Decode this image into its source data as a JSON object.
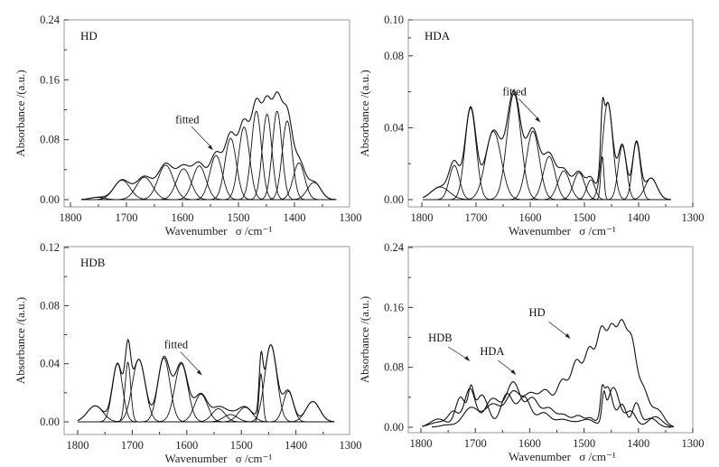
{
  "chart_data": [
    {
      "id": "HD",
      "type": "line",
      "panel_label": "HD",
      "xlabel": "Wavenumber",
      "xlabel_symbol": "σ /cm⁻¹",
      "ylabel": "Absorbance /(a.u.)",
      "xlim": [
        1820,
        1300
      ],
      "ylim": [
        -0.008,
        0.24
      ],
      "xticks": [
        1800,
        1700,
        1600,
        1500,
        1400,
        1300
      ],
      "yticks": [
        "0.00",
        "0.08",
        "0.16",
        "0.24"
      ],
      "ytick_values": [
        0.0,
        0.08,
        0.16,
        0.24
      ],
      "x_range_data": [
        1780,
        1325
      ],
      "annotation": {
        "text": "fitted",
        "target_x": 1545,
        "target_y": 0.066
      },
      "components": [
        {
          "center": 1752,
          "height": 0.003,
          "fwhm": 30
        },
        {
          "center": 1708,
          "height": 0.026,
          "fwhm": 34
        },
        {
          "center": 1668,
          "height": 0.03,
          "fwhm": 34
        },
        {
          "center": 1630,
          "height": 0.046,
          "fwhm": 32
        },
        {
          "center": 1598,
          "height": 0.041,
          "fwhm": 30
        },
        {
          "center": 1570,
          "height": 0.045,
          "fwhm": 28
        },
        {
          "center": 1540,
          "height": 0.059,
          "fwhm": 26
        },
        {
          "center": 1514,
          "height": 0.082,
          "fwhm": 24
        },
        {
          "center": 1490,
          "height": 0.097,
          "fwhm": 23
        },
        {
          "center": 1468,
          "height": 0.118,
          "fwhm": 21
        },
        {
          "center": 1449,
          "height": 0.114,
          "fwhm": 20
        },
        {
          "center": 1431,
          "height": 0.118,
          "fwhm": 20
        },
        {
          "center": 1413,
          "height": 0.105,
          "fwhm": 21
        },
        {
          "center": 1392,
          "height": 0.049,
          "fwhm": 24
        },
        {
          "center": 1365,
          "height": 0.023,
          "fwhm": 28
        }
      ]
    },
    {
      "id": "HDA",
      "type": "line",
      "panel_label": "HDA",
      "xlabel": "Wavenumber",
      "xlabel_symbol": "σ /cm⁻¹",
      "ylabel": "Absorbance /(a.u.)",
      "xlim": [
        1825,
        1300
      ],
      "ylim": [
        -0.004,
        0.1
      ],
      "xticks": [
        1800,
        1700,
        1600,
        1500,
        1400,
        1300
      ],
      "yticks": [
        "0.00",
        "0.04",
        "0.08",
        "0.10"
      ],
      "ytick_values": [
        0.0,
        0.04,
        0.08,
        0.1
      ],
      "x_range_data": [
        1798,
        1340
      ],
      "annotation": {
        "text": "fitted",
        "target_x": 1581,
        "target_y": 0.043
      },
      "components": [
        {
          "center": 1766,
          "height": 0.007,
          "fwhm": 40
        },
        {
          "center": 1740,
          "height": 0.019,
          "fwhm": 22
        },
        {
          "center": 1710,
          "height": 0.051,
          "fwhm": 24
        },
        {
          "center": 1668,
          "height": 0.038,
          "fwhm": 34
        },
        {
          "center": 1630,
          "height": 0.059,
          "fwhm": 30
        },
        {
          "center": 1595,
          "height": 0.038,
          "fwhm": 28
        },
        {
          "center": 1565,
          "height": 0.024,
          "fwhm": 26
        },
        {
          "center": 1538,
          "height": 0.016,
          "fwhm": 26
        },
        {
          "center": 1510,
          "height": 0.015,
          "fwhm": 24
        },
        {
          "center": 1488,
          "height": 0.011,
          "fwhm": 18
        },
        {
          "center": 1467,
          "height": 0.024,
          "fwhm": 7
        },
        {
          "center": 1457,
          "height": 0.054,
          "fwhm": 22
        },
        {
          "center": 1430,
          "height": 0.03,
          "fwhm": 18
        },
        {
          "center": 1404,
          "height": 0.032,
          "fwhm": 17
        },
        {
          "center": 1377,
          "height": 0.012,
          "fwhm": 26
        }
      ]
    },
    {
      "id": "HDB",
      "type": "line",
      "panel_label": "HDB",
      "xlabel": "Wavenumber",
      "xlabel_symbol": "σ /cm⁻¹",
      "ylabel": "Absorbance /(a.u.)",
      "xlim": [
        1825,
        1300
      ],
      "ylim": [
        -0.008,
        0.12
      ],
      "xticks": [
        1800,
        1700,
        1600,
        1500,
        1400,
        1300
      ],
      "yticks": [
        "0.00",
        "0.04",
        "0.08",
        "0.12"
      ],
      "ytick_values": [
        0.0,
        0.04,
        0.08,
        0.12
      ],
      "x_range_data": [
        1800,
        1330
      ],
      "annotation": {
        "text": "fitted",
        "target_x": 1572,
        "target_y": 0.032
      },
      "components": [
        {
          "center": 1768,
          "height": 0.011,
          "fwhm": 34
        },
        {
          "center": 1727,
          "height": 0.04,
          "fwhm": 22
        },
        {
          "center": 1708,
          "height": 0.041,
          "fwhm": 12
        },
        {
          "center": 1688,
          "height": 0.043,
          "fwhm": 28
        },
        {
          "center": 1642,
          "height": 0.044,
          "fwhm": 26
        },
        {
          "center": 1610,
          "height": 0.04,
          "fwhm": 28
        },
        {
          "center": 1574,
          "height": 0.019,
          "fwhm": 28
        },
        {
          "center": 1542,
          "height": 0.009,
          "fwhm": 28
        },
        {
          "center": 1520,
          "height": 0.005,
          "fwhm": 30
        },
        {
          "center": 1493,
          "height": 0.01,
          "fwhm": 30
        },
        {
          "center": 1464,
          "height": 0.033,
          "fwhm": 8
        },
        {
          "center": 1446,
          "height": 0.053,
          "fwhm": 26
        },
        {
          "center": 1414,
          "height": 0.021,
          "fwhm": 22
        },
        {
          "center": 1369,
          "height": 0.014,
          "fwhm": 30
        }
      ]
    },
    {
      "id": "comparison",
      "type": "line",
      "panel_label": "",
      "xlabel": "Wavenumber",
      "xlabel_symbol": "σ /cm⁻¹",
      "ylabel": "Absorbance /(a.u.)",
      "xlim": [
        1825,
        1300
      ],
      "ylim": [
        -0.008,
        0.24
      ],
      "xticks": [
        1800,
        1700,
        1600,
        1500,
        1400,
        1300
      ],
      "yticks": [
        "0.00",
        "0.08",
        "0.16",
        "0.24"
      ],
      "ytick_values": [
        0.0,
        0.08,
        0.16,
        0.24
      ],
      "series": [
        {
          "name": "HD",
          "from_panel": "HD",
          "scale": 1.0
        },
        {
          "name": "HDA",
          "from_panel": "HDA",
          "scale": 1.0
        },
        {
          "name": "HDB",
          "from_panel": "HDB",
          "scale": 1.0
        }
      ],
      "annotations": [
        {
          "text": "HDB",
          "target_x": 1710,
          "target_y": 0.088
        },
        {
          "text": "HDA",
          "target_x": 1625,
          "target_y": 0.07
        },
        {
          "text": "HD",
          "target_x": 1525,
          "target_y": 0.118
        }
      ]
    }
  ]
}
